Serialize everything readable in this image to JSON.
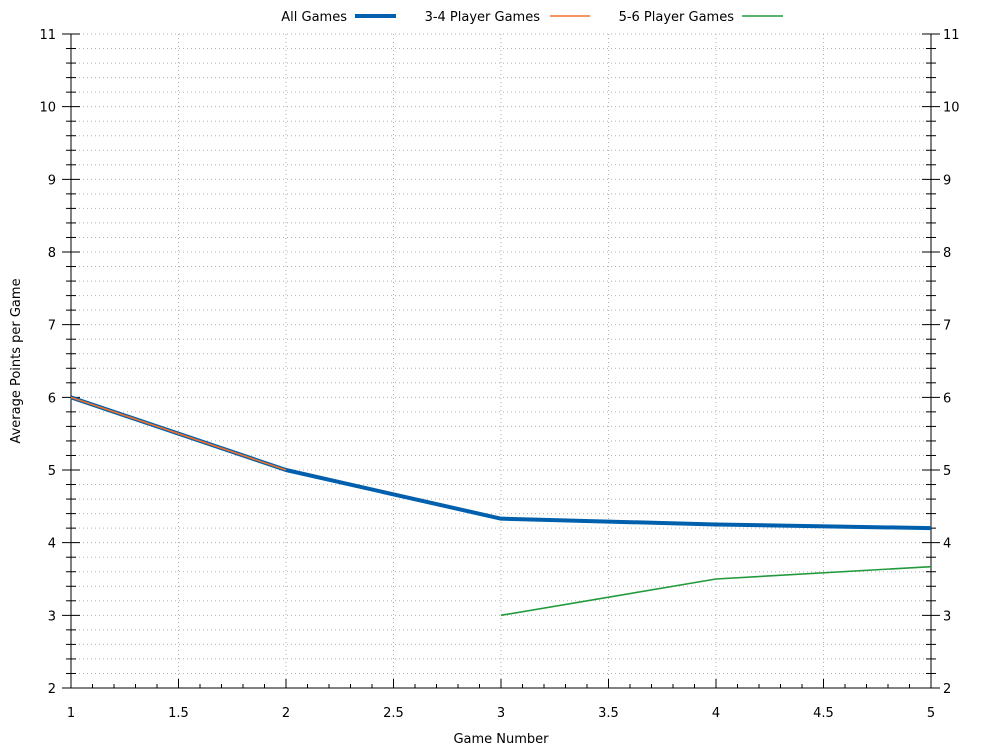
{
  "chart_data": {
    "type": "line",
    "xlabel": "Game Number",
    "ylabel": "Average Points per Game",
    "xlim": [
      1,
      5
    ],
    "ylim": [
      2,
      11
    ],
    "x_ticks": [
      1,
      1.5,
      2,
      2.5,
      3,
      3.5,
      4,
      4.5,
      5
    ],
    "x_tick_labels": [
      "1",
      "1.5",
      "2",
      "2.5",
      "3",
      "3.5",
      "4",
      "4.5",
      "5"
    ],
    "y_ticks": [
      2,
      3,
      4,
      5,
      6,
      7,
      8,
      9,
      10,
      11
    ],
    "y_tick_labels": [
      "2",
      "3",
      "4",
      "5",
      "6",
      "7",
      "8",
      "9",
      "10",
      "11"
    ],
    "mirror_y_axis_right": true,
    "grid": true,
    "legend_position": "top-center",
    "series": [
      {
        "name": "All Games",
        "color": "#0060ad",
        "x": [
          1,
          2,
          3,
          4,
          5
        ],
        "y": [
          6,
          5,
          4.33,
          4.25,
          4.2
        ]
      },
      {
        "name": "3-4 Player Games",
        "color": "#f07028",
        "x": [
          1,
          2
        ],
        "y": [
          6,
          5
        ]
      },
      {
        "name": "5-6 Player Games",
        "color": "#229a3c",
        "x": [
          3,
          4,
          5
        ],
        "y": [
          3,
          3.5,
          3.67
        ]
      }
    ]
  }
}
